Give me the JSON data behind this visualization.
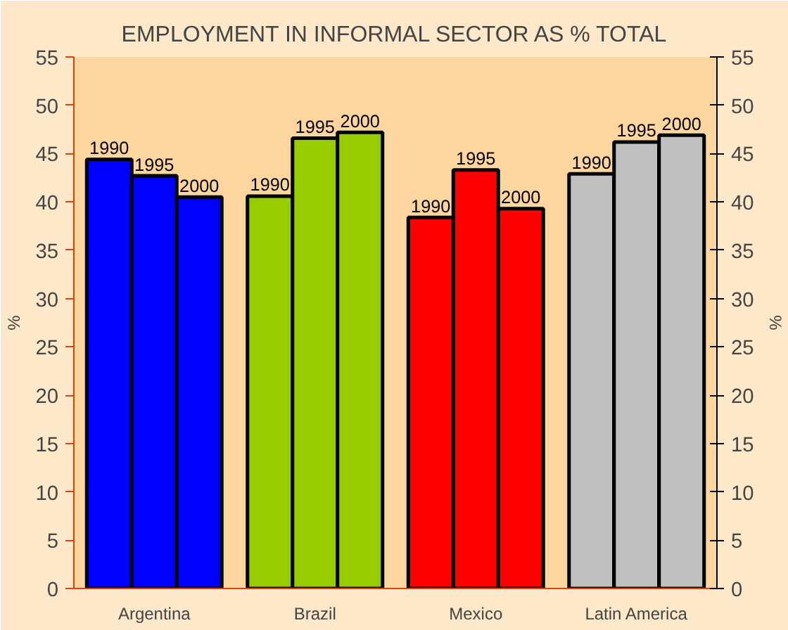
{
  "chart_data": {
    "type": "bar",
    "title": "EMPLOYMENT IN INFORMAL SECTOR AS % TOTAL",
    "ylabel": "%",
    "y2label": "%",
    "categories": [
      "Argentina",
      "Brazil",
      "Mexico",
      "Latin America"
    ],
    "series": [
      {
        "name": "1990",
        "colors": [
          "#0000ff",
          "#99cc00",
          "#ff0000",
          "#c0c0c0"
        ],
        "values": [
          44.4,
          40.6,
          38.4,
          42.9
        ]
      },
      {
        "name": "1995",
        "colors": [
          "#0000ff",
          "#99cc00",
          "#ff0000",
          "#c0c0c0"
        ],
        "values": [
          42.7,
          46.6,
          43.3,
          46.2
        ]
      },
      {
        "name": "2000",
        "colors": [
          "#0000ff",
          "#99cc00",
          "#ff0000",
          "#c0c0c0"
        ],
        "values": [
          40.5,
          47.2,
          39.3,
          46.9
        ]
      }
    ],
    "ylim": [
      0,
      55
    ],
    "yticks": [
      0,
      5,
      10,
      15,
      20,
      25,
      30,
      35,
      40,
      45,
      50,
      55
    ],
    "y2lim": [
      0,
      55
    ],
    "y2ticks": [
      0,
      5,
      10,
      15,
      20,
      25,
      30,
      35,
      40,
      45,
      50,
      55
    ],
    "grid": false
  }
}
